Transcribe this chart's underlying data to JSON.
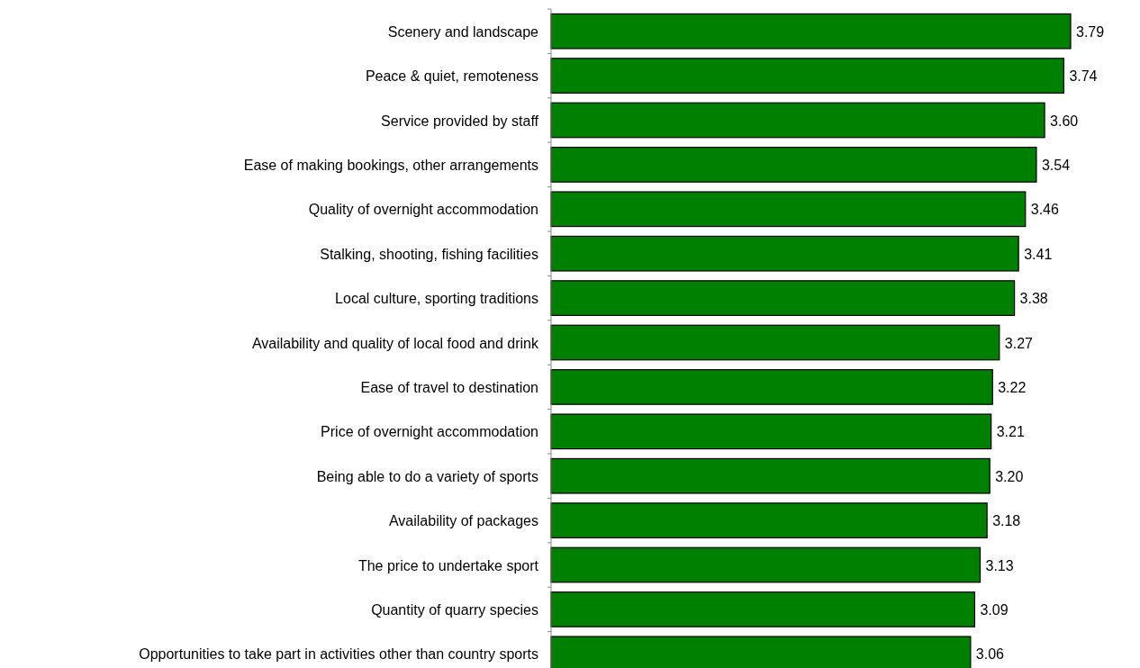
{
  "chart_data": {
    "type": "bar",
    "orientation": "horizontal",
    "categories": [
      "Scenery and landscape",
      "Peace & quiet, remoteness",
      "Service provided by staff",
      "Ease of making bookings, other arrangements",
      "Quality of overnight accommodation",
      "Stalking, shooting, fishing facilities",
      "Local culture, sporting traditions",
      "Availability and quality of local food and drink",
      "Ease of travel to destination",
      "Price of overnight accommodation",
      "Being able to do a variety of sports",
      "Availability of packages",
      "The price to undertake sport",
      "Quantity of quarry species",
      "Opportunities to take part in activities other than country sports"
    ],
    "values": [
      3.79,
      3.74,
      3.6,
      3.54,
      3.46,
      3.41,
      3.38,
      3.27,
      3.22,
      3.21,
      3.2,
      3.18,
      3.13,
      3.09,
      3.06
    ],
    "value_labels": [
      "3.79",
      "3.74",
      "3.60",
      "3.54",
      "3.46",
      "3.41",
      "3.38",
      "3.27",
      "3.22",
      "3.21",
      "3.20",
      "3.18",
      "3.13",
      "3.09",
      "3.06"
    ],
    "color": "#008000",
    "tick_labels": "y"
  }
}
